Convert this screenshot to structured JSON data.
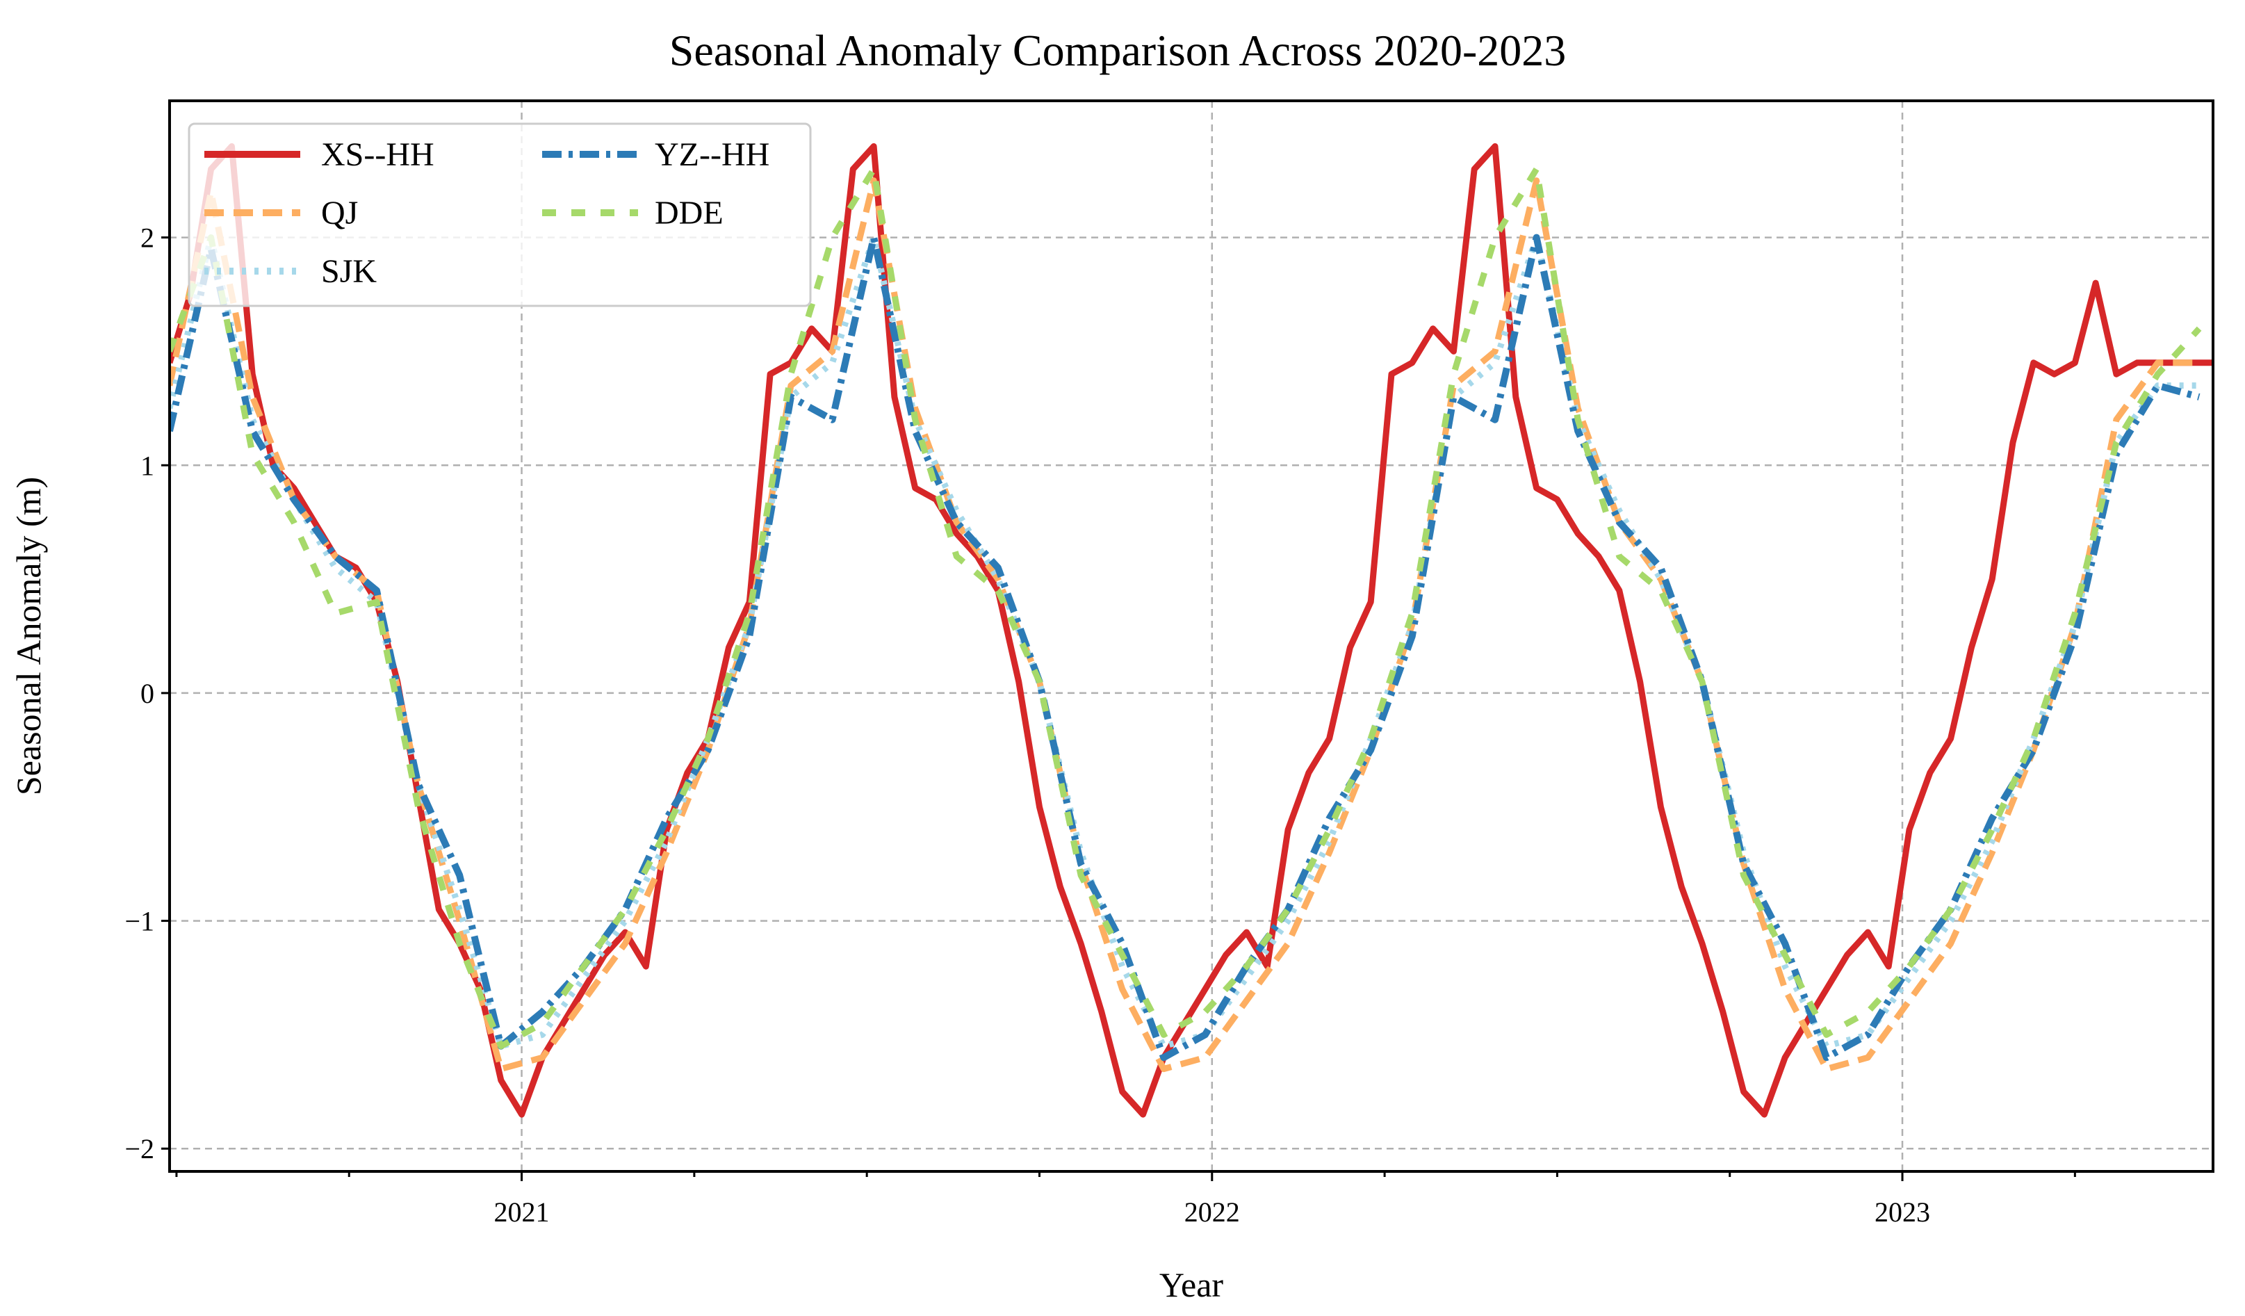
{
  "chart_data": {
    "type": "line",
    "title": "Seasonal Anomaly Comparison Across 2020-2023",
    "xlabel": "Year",
    "ylabel": "Seasonal Anomaly (m)",
    "xlim": [
      2020.49,
      2023.45
    ],
    "ylim": [
      -2.1,
      2.6
    ],
    "x_major_ticks": [
      2021,
      2022,
      2023
    ],
    "x_major_tick_labels": [
      "2021",
      "2022",
      "2023"
    ],
    "x_minor_ticks": [
      2020.5,
      2020.75,
      2021.25,
      2021.5,
      2021.75,
      2022.25,
      2022.5,
      2022.75,
      2023.25
    ],
    "y_ticks": [
      -2,
      -1,
      0,
      1,
      2
    ],
    "y_tick_labels": [
      "−2",
      "−1",
      "0",
      "1",
      "2"
    ],
    "grid": true,
    "legend_position": "top-left",
    "series": [
      {
        "name": "XS--HH",
        "color": "#d62728",
        "dash": "solid",
        "x": [
          2020.49,
          2020.52,
          2020.55,
          2020.58,
          2020.61,
          2020.64,
          2020.67,
          2020.7,
          2020.73,
          2020.76,
          2020.79,
          2020.82,
          2020.85,
          2020.88,
          2020.91,
          2020.94,
          2020.97,
          2021.0,
          2021.03,
          2021.06,
          2021.09,
          2021.12,
          2021.15,
          2021.18,
          2021.21,
          2021.24,
          2021.27,
          2021.3,
          2021.33,
          2021.36,
          2021.39,
          2021.42,
          2021.45,
          2021.48,
          2021.51,
          2021.54,
          2021.57,
          2021.6,
          2021.63,
          2021.66,
          2021.69,
          2021.72,
          2021.75,
          2021.78,
          2021.81,
          2021.84,
          2021.87,
          2021.9,
          2021.93,
          2021.96,
          2021.99,
          2022.02,
          2022.05,
          2022.08,
          2022.11,
          2022.14,
          2022.17,
          2022.2,
          2022.23,
          2022.26,
          2022.29,
          2022.32,
          2022.35,
          2022.38,
          2022.41,
          2022.44,
          2022.47,
          2022.5,
          2022.53,
          2022.56,
          2022.59,
          2022.62,
          2022.65,
          2022.68,
          2022.71,
          2022.74,
          2022.77,
          2022.8,
          2022.83,
          2022.86,
          2022.89,
          2022.92,
          2022.95,
          2022.98,
          2023.01,
          2023.04,
          2023.07,
          2023.1,
          2023.13,
          2023.16,
          2023.19,
          2023.22,
          2023.25,
          2023.28,
          2023.31,
          2023.34,
          2023.37,
          2023.4,
          2023.43,
          2023.45
        ],
        "values": [
          1.45,
          1.75,
          2.3,
          2.4,
          1.4,
          1.0,
          0.9,
          0.75,
          0.6,
          0.55,
          0.4,
          0.05,
          -0.45,
          -0.95,
          -1.1,
          -1.3,
          -1.7,
          -1.85,
          -1.6,
          -1.45,
          -1.3,
          -1.15,
          -1.05,
          -1.2,
          -0.6,
          -0.35,
          -0.2,
          0.2,
          0.4,
          1.4,
          1.45,
          1.6,
          1.5,
          2.3,
          2.4,
          1.3,
          0.9,
          0.85,
          0.7,
          0.6,
          0.45,
          0.05,
          -0.5,
          -0.85,
          -1.1,
          -1.4,
          -1.75,
          -1.85,
          -1.6,
          -1.45,
          -1.3,
          -1.15,
          -1.05,
          -1.2,
          -0.6,
          -0.35,
          -0.2,
          0.2,
          0.4,
          1.4,
          1.45,
          1.6,
          1.5,
          2.3,
          2.4,
          1.3,
          0.9,
          0.85,
          0.7,
          0.6,
          0.45,
          0.05,
          -0.5,
          -0.85,
          -1.1,
          -1.4,
          -1.75,
          -1.85,
          -1.6,
          -1.45,
          -1.3,
          -1.15,
          -1.05,
          -1.2,
          -0.6,
          -0.35,
          -0.2,
          0.2,
          0.5,
          1.1,
          1.45,
          1.4,
          1.45,
          1.8,
          1.4,
          1.45,
          1.45,
          1.45,
          1.45,
          1.45
        ]
      },
      {
        "name": "QJ",
        "color": "#fdae61",
        "dash": "dashed",
        "x": [
          2020.49,
          2020.55,
          2020.61,
          2020.67,
          2020.73,
          2020.79,
          2020.85,
          2020.91,
          2020.97,
          2021.03,
          2021.09,
          2021.15,
          2021.21,
          2021.27,
          2021.33,
          2021.39,
          2021.45,
          2021.51,
          2021.57,
          2021.63,
          2021.69,
          2021.75,
          2021.81,
          2021.87,
          2021.93,
          2021.99,
          2022.05,
          2022.11,
          2022.17,
          2022.23,
          2022.29,
          2022.35,
          2022.41,
          2022.47,
          2022.53,
          2022.59,
          2022.65,
          2022.71,
          2022.77,
          2022.83,
          2022.89,
          2022.95,
          2023.01,
          2023.07,
          2023.13,
          2023.19,
          2023.25,
          2023.31,
          2023.37,
          2023.43
        ],
        "values": [
          1.35,
          2.2,
          1.3,
          0.85,
          0.6,
          0.45,
          -0.4,
          -1.0,
          -1.65,
          -1.6,
          -1.35,
          -1.1,
          -0.7,
          -0.25,
          0.3,
          1.35,
          1.5,
          2.25,
          1.25,
          0.75,
          0.5,
          0.05,
          -0.75,
          -1.3,
          -1.65,
          -1.6,
          -1.35,
          -1.1,
          -0.7,
          -0.25,
          0.3,
          1.35,
          1.5,
          2.25,
          1.25,
          0.75,
          0.5,
          0.05,
          -0.75,
          -1.3,
          -1.65,
          -1.6,
          -1.35,
          -1.1,
          -0.7,
          -0.25,
          0.3,
          1.2,
          1.45,
          1.45
        ]
      },
      {
        "name": "SJK",
        "color": "#a6d8ea",
        "dash": "dotted",
        "x": [
          2020.49,
          2020.55,
          2020.61,
          2020.67,
          2020.73,
          2020.79,
          2020.85,
          2020.91,
          2020.97,
          2021.03,
          2021.09,
          2021.15,
          2021.21,
          2021.27,
          2021.33,
          2021.39,
          2021.45,
          2021.51,
          2021.57,
          2021.63,
          2021.69,
          2021.75,
          2021.81,
          2021.87,
          2021.93,
          2021.99,
          2022.05,
          2022.11,
          2022.17,
          2022.23,
          2022.29,
          2022.35,
          2022.41,
          2022.47,
          2022.53,
          2022.59,
          2022.65,
          2022.71,
          2022.77,
          2022.83,
          2022.89,
          2022.95,
          2023.01,
          2023.07,
          2023.13,
          2023.19,
          2023.25,
          2023.31,
          2023.37,
          2023.43
        ],
        "values": [
          1.25,
          2.0,
          1.2,
          0.85,
          0.55,
          0.4,
          -0.4,
          -0.95,
          -1.55,
          -1.5,
          -1.25,
          -1.0,
          -0.65,
          -0.2,
          0.3,
          1.3,
          1.45,
          2.0,
          1.2,
          0.8,
          0.5,
          0.05,
          -0.7,
          -1.2,
          -1.55,
          -1.5,
          -1.25,
          -1.0,
          -0.65,
          -0.2,
          0.3,
          1.3,
          1.45,
          2.0,
          1.2,
          0.8,
          0.5,
          0.05,
          -0.7,
          -1.2,
          -1.55,
          -1.5,
          -1.25,
          -1.0,
          -0.65,
          -0.2,
          0.3,
          1.1,
          1.35,
          1.35
        ]
      },
      {
        "name": "YZ--HH",
        "color": "#2c7bb6",
        "dash": "dashdot",
        "x": [
          2020.49,
          2020.55,
          2020.61,
          2020.67,
          2020.73,
          2020.79,
          2020.85,
          2020.91,
          2020.97,
          2021.03,
          2021.09,
          2021.15,
          2021.21,
          2021.27,
          2021.33,
          2021.39,
          2021.45,
          2021.51,
          2021.57,
          2021.63,
          2021.69,
          2021.75,
          2021.81,
          2021.87,
          2021.93,
          2021.99,
          2022.05,
          2022.11,
          2022.17,
          2022.23,
          2022.29,
          2022.35,
          2022.41,
          2022.47,
          2022.53,
          2022.59,
          2022.65,
          2022.71,
          2022.77,
          2022.83,
          2022.89,
          2022.95,
          2023.01,
          2023.07,
          2023.13,
          2023.19,
          2023.25,
          2023.31,
          2023.37,
          2023.43
        ],
        "values": [
          1.15,
          1.95,
          1.15,
          0.85,
          0.6,
          0.45,
          -0.4,
          -0.8,
          -1.55,
          -1.4,
          -1.2,
          -0.95,
          -0.55,
          -0.25,
          0.25,
          1.3,
          1.2,
          2.0,
          1.15,
          0.75,
          0.55,
          0.05,
          -0.75,
          -1.1,
          -1.6,
          -1.5,
          -1.2,
          -0.95,
          -0.55,
          -0.25,
          0.25,
          1.3,
          1.2,
          2.0,
          1.15,
          0.75,
          0.55,
          0.05,
          -0.75,
          -1.1,
          -1.6,
          -1.5,
          -1.2,
          -0.95,
          -0.55,
          -0.25,
          0.25,
          1.05,
          1.35,
          1.3
        ]
      },
      {
        "name": "DDE",
        "color": "#a6d96a",
        "dash": "loosedash",
        "x": [
          2020.49,
          2020.55,
          2020.61,
          2020.67,
          2020.73,
          2020.79,
          2020.85,
          2020.91,
          2020.97,
          2021.03,
          2021.09,
          2021.15,
          2021.21,
          2021.27,
          2021.33,
          2021.39,
          2021.45,
          2021.51,
          2021.57,
          2021.63,
          2021.69,
          2021.75,
          2021.81,
          2021.87,
          2021.93,
          2021.99,
          2022.05,
          2022.11,
          2022.17,
          2022.23,
          2022.29,
          2022.35,
          2022.41,
          2022.47,
          2022.53,
          2022.59,
          2022.65,
          2022.71,
          2022.77,
          2022.83,
          2022.89,
          2022.95,
          2023.01,
          2023.07,
          2023.13,
          2023.19,
          2023.25,
          2023.31,
          2023.37,
          2023.43
        ],
        "values": [
          1.5,
          2.0,
          1.05,
          0.75,
          0.35,
          0.4,
          -0.5,
          -1.1,
          -1.55,
          -1.45,
          -1.2,
          -0.95,
          -0.6,
          -0.2,
          0.35,
          1.4,
          2.0,
          2.3,
          1.2,
          0.6,
          0.45,
          0.05,
          -0.8,
          -1.15,
          -1.5,
          -1.4,
          -1.2,
          -0.95,
          -0.6,
          -0.2,
          0.35,
          1.4,
          2.0,
          2.3,
          1.2,
          0.6,
          0.45,
          0.05,
          -0.8,
          -1.15,
          -1.5,
          -1.4,
          -1.2,
          -0.95,
          -0.6,
          -0.2,
          0.35,
          1.1,
          1.4,
          1.6
        ]
      }
    ]
  }
}
